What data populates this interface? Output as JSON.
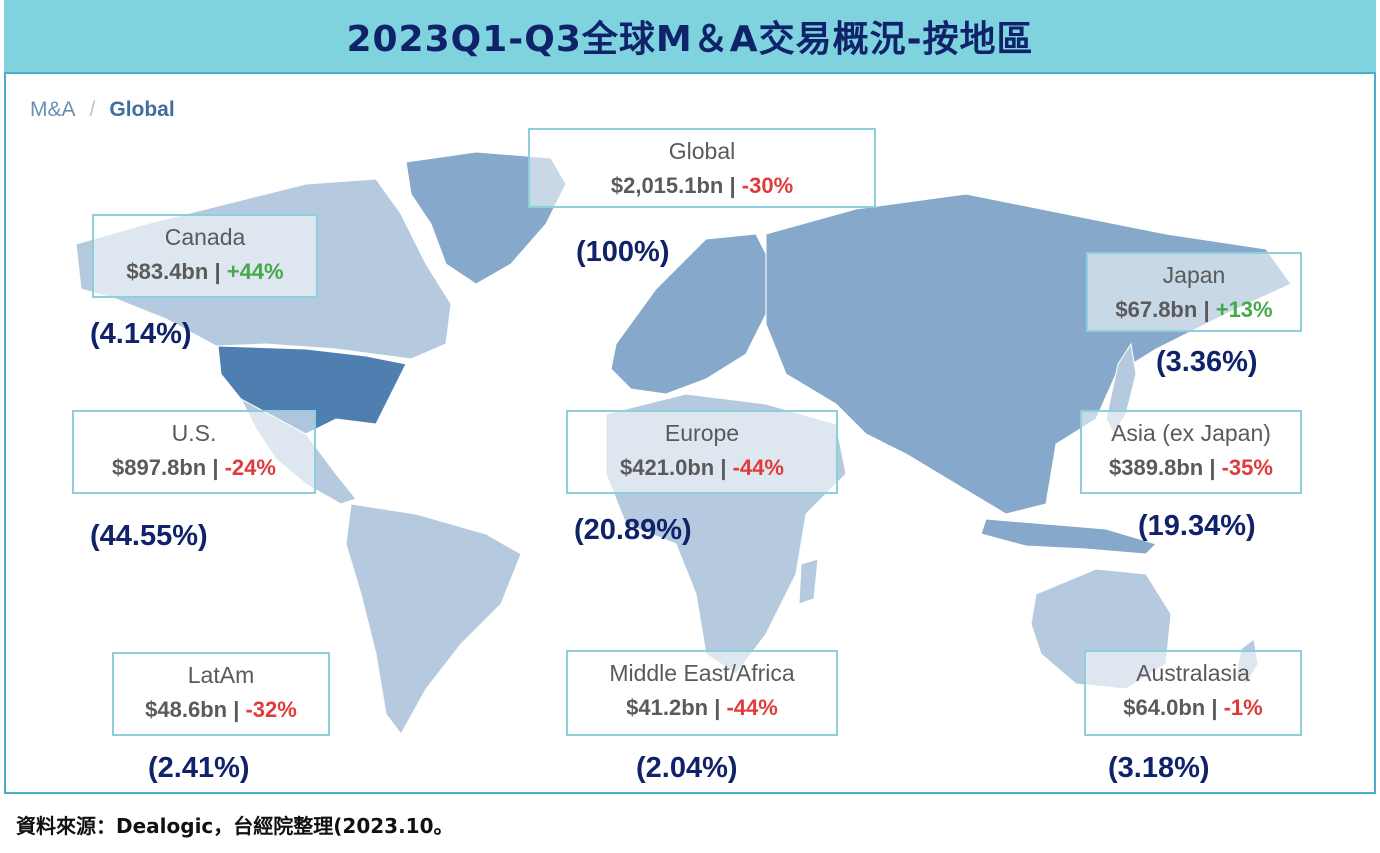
{
  "title": "2023Q1-Q3全球M＆A交易概況-按地區",
  "breadcrumb": {
    "root": "M&A",
    "separator": "/",
    "current": "Global"
  },
  "colors": {
    "title_bg": "#7fd3de",
    "title_text": "#10236a",
    "negative": "#e03a3a",
    "positive": "#46a84b",
    "us_fill": "#4e7fb0",
    "map_mid": "#86a8cb",
    "map_light": "#b5cade"
  },
  "regions": [
    {
      "id": "global",
      "name": "Global",
      "value": "$2,015.1bn",
      "sep": "|",
      "change": "-30%",
      "direction": "negative",
      "share": "(100%)"
    },
    {
      "id": "canada",
      "name": "Canada",
      "value": "$83.4bn",
      "sep": "|",
      "change": "+44%",
      "direction": "positive",
      "share": "(4.14%)"
    },
    {
      "id": "japan",
      "name": "Japan",
      "value": "$67.8bn",
      "sep": "|",
      "change": "+13%",
      "direction": "positive",
      "share": "(3.36%)"
    },
    {
      "id": "us",
      "name": "U.S.",
      "value": "$897.8bn",
      "sep": "|",
      "change": "-24%",
      "direction": "negative",
      "share": "(44.55%)"
    },
    {
      "id": "europe",
      "name": "Europe",
      "value": "$421.0bn",
      "sep": "|",
      "change": "-44%",
      "direction": "negative",
      "share": "(20.89%)"
    },
    {
      "id": "asia",
      "name": "Asia (ex Japan)",
      "value": "$389.8bn",
      "sep": "|",
      "change": "-35%",
      "direction": "negative",
      "share": "(19.34%)"
    },
    {
      "id": "latam",
      "name": "LatAm",
      "value": "$48.6bn",
      "sep": "|",
      "change": "-32%",
      "direction": "negative",
      "share": "(2.41%)"
    },
    {
      "id": "mea",
      "name": "Middle East/Africa",
      "value": "$41.2bn",
      "sep": "|",
      "change": "-44%",
      "direction": "negative",
      "share": "(2.04%)"
    },
    {
      "id": "australasia",
      "name": "Australasia",
      "value": "$64.0bn",
      "sep": "|",
      "change": "-1%",
      "direction": "negative",
      "share": "(3.18%)"
    }
  ],
  "source": "資料來源：Dealogic，台經院整理(2023.10。"
}
